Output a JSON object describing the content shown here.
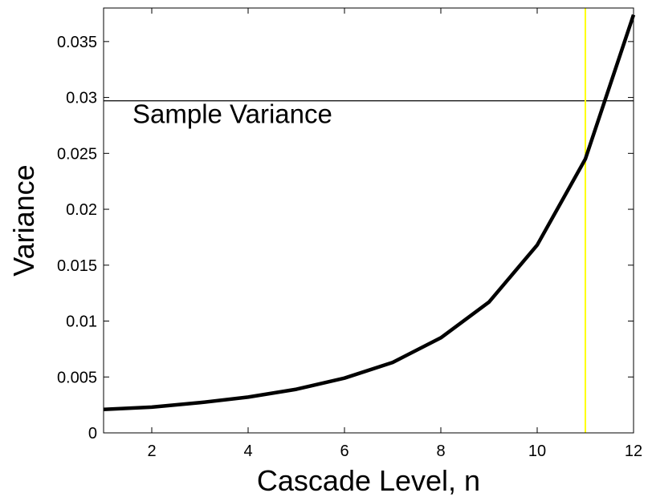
{
  "chart_data": {
    "type": "line",
    "title": "",
    "xlabel": "Cascade Level, n",
    "ylabel": "Variance",
    "xlim": [
      1,
      12
    ],
    "ylim": [
      0,
      0.038
    ],
    "xticks": [
      2,
      4,
      6,
      8,
      10,
      12
    ],
    "xtick_labels": [
      "2",
      "4",
      "6",
      "8",
      "10",
      "12"
    ],
    "yticks": [
      0,
      0.005,
      0.01,
      0.015,
      0.02,
      0.025,
      0.03,
      0.035
    ],
    "ytick_labels": [
      "0",
      "0.005",
      "0.01",
      "0.015",
      "0.02",
      "0.025",
      "0.03",
      "0.035"
    ],
    "grid": false,
    "series": [
      {
        "color": "#000000",
        "x": [
          1,
          2,
          3,
          4,
          5,
          6,
          7,
          8,
          9,
          10,
          11,
          12
        ],
        "y": [
          0.0021,
          0.0023,
          0.0027,
          0.0032,
          0.0039,
          0.0049,
          0.0063,
          0.0085,
          0.0117,
          0.0168,
          0.0245,
          0.0374
        ]
      }
    ],
    "reference_lines": [
      {
        "orientation": "horizontal",
        "value": 0.0297,
        "color": "#000000"
      },
      {
        "orientation": "vertical",
        "value": 11,
        "color": "#ffff00"
      }
    ],
    "annotations": [
      {
        "text": "Sample Variance",
        "x": 1.6,
        "y": 0.0277
      }
    ]
  }
}
